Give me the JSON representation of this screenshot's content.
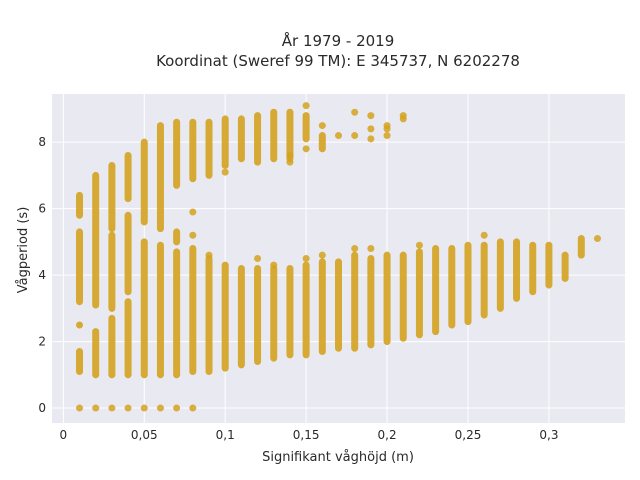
{
  "chart_data": {
    "type": "scatter",
    "title_lines": [
      "År 1979 - 2019",
      "Koordinat (Sweref 99 TM): E 345737, N 6202278"
    ],
    "xlabel": "Signifikant våghöjd (m)",
    "ylabel": "Vågperiod (s)",
    "xlim": [
      -0.007,
      0.347
    ],
    "ylim": [
      -0.45,
      9.45
    ],
    "x_ticks": [
      {
        "value": 0,
        "label": "0"
      },
      {
        "value": 0.05,
        "label": "0,05"
      },
      {
        "value": 0.1,
        "label": "0,1"
      },
      {
        "value": 0.15,
        "label": "0,15"
      },
      {
        "value": 0.2,
        "label": "0,2"
      },
      {
        "value": 0.25,
        "label": "0,25"
      },
      {
        "value": 0.3,
        "label": "0,3"
      }
    ],
    "y_ticks": [
      {
        "value": 0,
        "label": "0"
      },
      {
        "value": 2,
        "label": "2"
      },
      {
        "value": 4,
        "label": "4"
      },
      {
        "value": 6,
        "label": "6"
      },
      {
        "value": 8,
        "label": "8"
      }
    ],
    "grid": true,
    "colors": {
      "points": "#D4A21F",
      "plot_background": "#E9E9F1",
      "grid": "#ffffff"
    },
    "columns": [
      {
        "x": 0.01,
        "segments": [
          [
            1.1,
            1.7
          ],
          [
            2.5,
            2.5
          ],
          [
            3.2,
            5.3
          ],
          [
            5.8,
            6.4
          ]
        ],
        "points": [
          0
        ]
      },
      {
        "x": 0.02,
        "segments": [
          [
            1.0,
            2.3
          ],
          [
            3.1,
            7.0
          ]
        ],
        "points": [
          0
        ]
      },
      {
        "x": 0.03,
        "segments": [
          [
            1.0,
            2.7
          ],
          [
            3.0,
            5.2
          ],
          [
            5.4,
            7.3
          ]
        ],
        "points": [
          0
        ]
      },
      {
        "x": 0.04,
        "segments": [
          [
            1.0,
            3.2
          ],
          [
            3.5,
            5.8
          ],
          [
            6.3,
            7.6
          ]
        ],
        "points": [
          0
        ]
      },
      {
        "x": 0.05,
        "segments": [
          [
            1.0,
            5.0
          ],
          [
            5.6,
            8.0
          ]
        ],
        "points": [
          0
        ]
      },
      {
        "x": 0.06,
        "segments": [
          [
            1.0,
            4.9
          ],
          [
            5.4,
            8.5
          ]
        ],
        "points": [
          0
        ]
      },
      {
        "x": 0.07,
        "segments": [
          [
            1.0,
            4.7
          ],
          [
            5.0,
            5.3
          ],
          [
            6.7,
            8.6
          ]
        ],
        "points": [
          0
        ]
      },
      {
        "x": 0.08,
        "segments": [
          [
            1.1,
            4.8
          ],
          [
            6.9,
            8.6
          ]
        ],
        "points": [
          0,
          5.2,
          5.9
        ]
      },
      {
        "x": 0.09,
        "segments": [
          [
            1.1,
            4.5
          ],
          [
            7.0,
            8.6
          ]
        ],
        "points": [
          4.6
        ]
      },
      {
        "x": 0.1,
        "segments": [
          [
            1.2,
            4.3
          ],
          [
            7.3,
            8.7
          ]
        ],
        "points": [
          7.1
        ]
      },
      {
        "x": 0.11,
        "segments": [
          [
            1.3,
            4.2
          ],
          [
            7.5,
            8.7
          ]
        ],
        "points": []
      },
      {
        "x": 0.12,
        "segments": [
          [
            1.4,
            4.2
          ],
          [
            7.4,
            8.8
          ]
        ],
        "points": [
          4.5
        ]
      },
      {
        "x": 0.13,
        "segments": [
          [
            1.5,
            4.2
          ],
          [
            7.5,
            8.9
          ]
        ],
        "points": [
          4.3
        ]
      },
      {
        "x": 0.14,
        "segments": [
          [
            1.6,
            4.2
          ],
          [
            7.5,
            8.9
          ]
        ],
        "points": [
          7.6,
          7.4
        ]
      },
      {
        "x": 0.15,
        "segments": [
          [
            1.6,
            4.3
          ],
          [
            8.1,
            8.8
          ]
        ],
        "points": [
          4.5,
          7.8,
          9.1
        ]
      },
      {
        "x": 0.16,
        "segments": [
          [
            1.7,
            4.4
          ],
          [
            7.8,
            8.2
          ]
        ],
        "points": [
          4.6,
          8.5
        ]
      },
      {
        "x": 0.17,
        "segments": [
          [
            1.8,
            4.4
          ]
        ],
        "points": [
          8.2
        ]
      },
      {
        "x": 0.18,
        "segments": [
          [
            1.8,
            4.6
          ]
        ],
        "points": [
          4.8,
          8.2,
          8.9
        ]
      },
      {
        "x": 0.19,
        "segments": [
          [
            1.9,
            4.5
          ]
        ],
        "points": [
          4.8,
          8.1,
          8.4,
          8.8
        ]
      },
      {
        "x": 0.2,
        "segments": [
          [
            2.0,
            4.6
          ]
        ],
        "points": [
          8.2,
          8.4,
          8.5
        ]
      },
      {
        "x": 0.21,
        "segments": [
          [
            2.1,
            4.6
          ]
        ],
        "points": [
          8.7,
          8.8
        ]
      },
      {
        "x": 0.22,
        "segments": [
          [
            2.2,
            4.7
          ]
        ],
        "points": [
          4.9
        ]
      },
      {
        "x": 0.23,
        "segments": [
          [
            2.3,
            4.8
          ]
        ],
        "points": []
      },
      {
        "x": 0.24,
        "segments": [
          [
            2.5,
            4.8
          ]
        ],
        "points": []
      },
      {
        "x": 0.25,
        "segments": [
          [
            2.6,
            4.9
          ]
        ],
        "points": []
      },
      {
        "x": 0.26,
        "segments": [
          [
            2.8,
            4.9
          ]
        ],
        "points": [
          5.2
        ]
      },
      {
        "x": 0.27,
        "segments": [
          [
            3.0,
            5.0
          ]
        ],
        "points": []
      },
      {
        "x": 0.28,
        "segments": [
          [
            3.3,
            5.0
          ]
        ],
        "points": []
      },
      {
        "x": 0.29,
        "segments": [
          [
            3.5,
            4.9
          ]
        ],
        "points": []
      },
      {
        "x": 0.3,
        "segments": [
          [
            3.7,
            4.9
          ]
        ],
        "points": []
      },
      {
        "x": 0.31,
        "segments": [
          [
            3.9,
            4.6
          ]
        ],
        "points": []
      },
      {
        "x": 0.32,
        "segments": [
          [
            4.6,
            5.1
          ]
        ],
        "points": []
      },
      {
        "x": 0.33,
        "segments": [],
        "points": [
          5.1
        ]
      }
    ]
  }
}
